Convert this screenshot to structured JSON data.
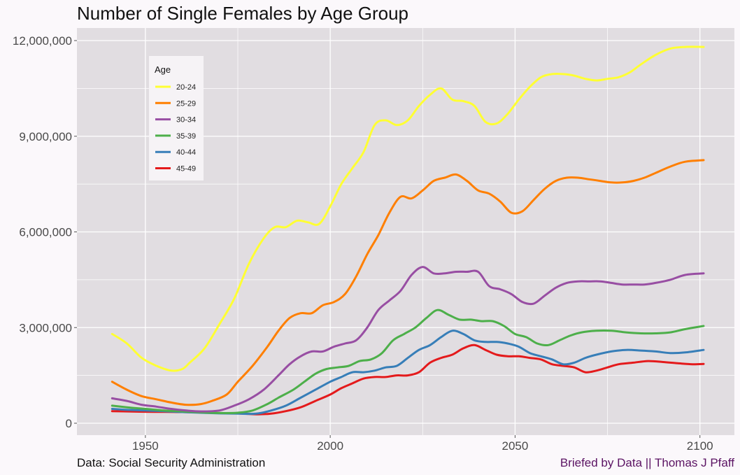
{
  "chart_data": {
    "type": "line",
    "title": "Number of Single Females by Age Group",
    "xlabel": "",
    "ylabel": "",
    "xlim": [
      1940,
      2101
    ],
    "ylim": [
      0,
      12000000
    ],
    "x_ticks": [
      1950,
      2000,
      2050,
      2100
    ],
    "x_tick_labels": [
      "1950",
      "2000",
      "2050",
      "2100"
    ],
    "y_ticks": [
      0,
      3000000,
      6000000,
      9000000,
      12000000
    ],
    "y_tick_labels": [
      "0",
      "3,000,000",
      "6,000,000",
      "9,000,000",
      "12,000,000"
    ],
    "grid": true,
    "legend": {
      "title": "Age",
      "placement": "top-left"
    },
    "colors": {
      "panel": "#e1dde1",
      "grid": "#ffffff",
      "background": "#fbf8fb"
    },
    "series": [
      {
        "name": "20-24",
        "color": "#ffff33",
        "points": [
          [
            1941,
            2800000
          ],
          [
            1945,
            2500000
          ],
          [
            1949,
            2050000
          ],
          [
            1953,
            1800000
          ],
          [
            1957,
            1650000
          ],
          [
            1960,
            1700000
          ],
          [
            1962,
            1900000
          ],
          [
            1966,
            2350000
          ],
          [
            1970,
            3100000
          ],
          [
            1974,
            3900000
          ],
          [
            1978,
            5000000
          ],
          [
            1982,
            5800000
          ],
          [
            1985,
            6150000
          ],
          [
            1988,
            6150000
          ],
          [
            1991,
            6350000
          ],
          [
            1994,
            6300000
          ],
          [
            1997,
            6250000
          ],
          [
            2000,
            6800000
          ],
          [
            2003,
            7500000
          ],
          [
            2006,
            8000000
          ],
          [
            2009,
            8500000
          ],
          [
            2012,
            9350000
          ],
          [
            2015,
            9500000
          ],
          [
            2018,
            9350000
          ],
          [
            2021,
            9500000
          ],
          [
            2024,
            9950000
          ],
          [
            2027,
            10300000
          ],
          [
            2030,
            10500000
          ],
          [
            2033,
            10150000
          ],
          [
            2036,
            10100000
          ],
          [
            2039,
            9950000
          ],
          [
            2042,
            9450000
          ],
          [
            2045,
            9400000
          ],
          [
            2048,
            9700000
          ],
          [
            2051,
            10150000
          ],
          [
            2054,
            10550000
          ],
          [
            2057,
            10850000
          ],
          [
            2060,
            10950000
          ],
          [
            2063,
            10950000
          ],
          [
            2066,
            10900000
          ],
          [
            2069,
            10800000
          ],
          [
            2072,
            10750000
          ],
          [
            2075,
            10800000
          ],
          [
            2078,
            10850000
          ],
          [
            2081,
            11000000
          ],
          [
            2084,
            11250000
          ],
          [
            2088,
            11550000
          ],
          [
            2092,
            11750000
          ],
          [
            2096,
            11800000
          ],
          [
            2101,
            11800000
          ]
        ]
      },
      {
        "name": "25-29",
        "color": "#ff7f00",
        "points": [
          [
            1941,
            1300000
          ],
          [
            1945,
            1050000
          ],
          [
            1949,
            850000
          ],
          [
            1953,
            750000
          ],
          [
            1957,
            650000
          ],
          [
            1961,
            580000
          ],
          [
            1965,
            600000
          ],
          [
            1968,
            700000
          ],
          [
            1972,
            900000
          ],
          [
            1975,
            1300000
          ],
          [
            1979,
            1800000
          ],
          [
            1983,
            2400000
          ],
          [
            1986,
            2900000
          ],
          [
            1989,
            3300000
          ],
          [
            1992,
            3450000
          ],
          [
            1995,
            3450000
          ],
          [
            1998,
            3700000
          ],
          [
            2001,
            3800000
          ],
          [
            2004,
            4050000
          ],
          [
            2007,
            4600000
          ],
          [
            2010,
            5300000
          ],
          [
            2013,
            5900000
          ],
          [
            2016,
            6600000
          ],
          [
            2019,
            7100000
          ],
          [
            2022,
            7050000
          ],
          [
            2025,
            7300000
          ],
          [
            2028,
            7600000
          ],
          [
            2031,
            7700000
          ],
          [
            2034,
            7800000
          ],
          [
            2037,
            7600000
          ],
          [
            2040,
            7300000
          ],
          [
            2043,
            7200000
          ],
          [
            2046,
            6950000
          ],
          [
            2049,
            6600000
          ],
          [
            2052,
            6650000
          ],
          [
            2055,
            7000000
          ],
          [
            2058,
            7350000
          ],
          [
            2061,
            7600000
          ],
          [
            2064,
            7700000
          ],
          [
            2067,
            7700000
          ],
          [
            2070,
            7650000
          ],
          [
            2073,
            7600000
          ],
          [
            2076,
            7550000
          ],
          [
            2079,
            7550000
          ],
          [
            2082,
            7600000
          ],
          [
            2085,
            7700000
          ],
          [
            2088,
            7850000
          ],
          [
            2092,
            8050000
          ],
          [
            2096,
            8200000
          ],
          [
            2101,
            8250000
          ]
        ]
      },
      {
        "name": "30-34",
        "color": "#984ea3",
        "points": [
          [
            1941,
            780000
          ],
          [
            1945,
            700000
          ],
          [
            1949,
            580000
          ],
          [
            1953,
            520000
          ],
          [
            1957,
            450000
          ],
          [
            1961,
            400000
          ],
          [
            1965,
            370000
          ],
          [
            1970,
            400000
          ],
          [
            1974,
            550000
          ],
          [
            1978,
            750000
          ],
          [
            1982,
            1050000
          ],
          [
            1986,
            1500000
          ],
          [
            1989,
            1850000
          ],
          [
            1992,
            2100000
          ],
          [
            1995,
            2250000
          ],
          [
            1998,
            2250000
          ],
          [
            2001,
            2400000
          ],
          [
            2004,
            2500000
          ],
          [
            2007,
            2600000
          ],
          [
            2010,
            3000000
          ],
          [
            2013,
            3550000
          ],
          [
            2016,
            3850000
          ],
          [
            2019,
            4150000
          ],
          [
            2022,
            4650000
          ],
          [
            2025,
            4900000
          ],
          [
            2028,
            4700000
          ],
          [
            2031,
            4700000
          ],
          [
            2034,
            4750000
          ],
          [
            2037,
            4750000
          ],
          [
            2040,
            4750000
          ],
          [
            2043,
            4300000
          ],
          [
            2046,
            4200000
          ],
          [
            2049,
            4050000
          ],
          [
            2052,
            3800000
          ],
          [
            2055,
            3750000
          ],
          [
            2058,
            4000000
          ],
          [
            2061,
            4250000
          ],
          [
            2064,
            4400000
          ],
          [
            2067,
            4450000
          ],
          [
            2070,
            4450000
          ],
          [
            2073,
            4450000
          ],
          [
            2076,
            4400000
          ],
          [
            2079,
            4350000
          ],
          [
            2082,
            4350000
          ],
          [
            2085,
            4350000
          ],
          [
            2088,
            4400000
          ],
          [
            2092,
            4500000
          ],
          [
            2096,
            4650000
          ],
          [
            2101,
            4700000
          ]
        ]
      },
      {
        "name": "35-39",
        "color": "#4daf4a",
        "points": [
          [
            1941,
            550000
          ],
          [
            1945,
            500000
          ],
          [
            1950,
            450000
          ],
          [
            1955,
            400000
          ],
          [
            1960,
            370000
          ],
          [
            1965,
            340000
          ],
          [
            1970,
            320000
          ],
          [
            1975,
            330000
          ],
          [
            1979,
            400000
          ],
          [
            1983,
            600000
          ],
          [
            1986,
            800000
          ],
          [
            1990,
            1050000
          ],
          [
            1993,
            1300000
          ],
          [
            1996,
            1550000
          ],
          [
            1999,
            1700000
          ],
          [
            2002,
            1750000
          ],
          [
            2005,
            1800000
          ],
          [
            2008,
            1950000
          ],
          [
            2011,
            2000000
          ],
          [
            2014,
            2200000
          ],
          [
            2017,
            2600000
          ],
          [
            2020,
            2800000
          ],
          [
            2023,
            3000000
          ],
          [
            2026,
            3300000
          ],
          [
            2029,
            3550000
          ],
          [
            2032,
            3400000
          ],
          [
            2035,
            3250000
          ],
          [
            2038,
            3250000
          ],
          [
            2041,
            3200000
          ],
          [
            2044,
            3200000
          ],
          [
            2047,
            3050000
          ],
          [
            2050,
            2800000
          ],
          [
            2053,
            2700000
          ],
          [
            2056,
            2500000
          ],
          [
            2059,
            2450000
          ],
          [
            2062,
            2600000
          ],
          [
            2065,
            2750000
          ],
          [
            2068,
            2850000
          ],
          [
            2072,
            2900000
          ],
          [
            2076,
            2900000
          ],
          [
            2080,
            2850000
          ],
          [
            2084,
            2820000
          ],
          [
            2088,
            2820000
          ],
          [
            2092,
            2850000
          ],
          [
            2096,
            2950000
          ],
          [
            2101,
            3050000
          ]
        ]
      },
      {
        "name": "40-44",
        "color": "#377eb8",
        "points": [
          [
            1941,
            450000
          ],
          [
            1945,
            420000
          ],
          [
            1950,
            400000
          ],
          [
            1955,
            380000
          ],
          [
            1960,
            350000
          ],
          [
            1965,
            330000
          ],
          [
            1970,
            310000
          ],
          [
            1975,
            300000
          ],
          [
            1980,
            300000
          ],
          [
            1984,
            400000
          ],
          [
            1988,
            550000
          ],
          [
            1992,
            800000
          ],
          [
            1996,
            1050000
          ],
          [
            2000,
            1300000
          ],
          [
            2003,
            1450000
          ],
          [
            2006,
            1600000
          ],
          [
            2009,
            1600000
          ],
          [
            2012,
            1650000
          ],
          [
            2015,
            1750000
          ],
          [
            2018,
            1800000
          ],
          [
            2021,
            2050000
          ],
          [
            2024,
            2300000
          ],
          [
            2027,
            2450000
          ],
          [
            2030,
            2700000
          ],
          [
            2033,
            2900000
          ],
          [
            2036,
            2800000
          ],
          [
            2039,
            2600000
          ],
          [
            2042,
            2550000
          ],
          [
            2045,
            2550000
          ],
          [
            2048,
            2500000
          ],
          [
            2051,
            2400000
          ],
          [
            2054,
            2200000
          ],
          [
            2057,
            2100000
          ],
          [
            2060,
            2000000
          ],
          [
            2063,
            1850000
          ],
          [
            2066,
            1900000
          ],
          [
            2069,
            2050000
          ],
          [
            2072,
            2150000
          ],
          [
            2076,
            2250000
          ],
          [
            2080,
            2300000
          ],
          [
            2084,
            2280000
          ],
          [
            2088,
            2250000
          ],
          [
            2092,
            2200000
          ],
          [
            2096,
            2220000
          ],
          [
            2101,
            2300000
          ]
        ]
      },
      {
        "name": "45-49",
        "color": "#e41a1c",
        "points": [
          [
            1941,
            380000
          ],
          [
            1945,
            370000
          ],
          [
            1950,
            360000
          ],
          [
            1955,
            355000
          ],
          [
            1960,
            350000
          ],
          [
            1965,
            340000
          ],
          [
            1970,
            320000
          ],
          [
            1975,
            310000
          ],
          [
            1980,
            280000
          ],
          [
            1984,
            300000
          ],
          [
            1988,
            380000
          ],
          [
            1992,
            500000
          ],
          [
            1996,
            700000
          ],
          [
            2000,
            900000
          ],
          [
            2003,
            1100000
          ],
          [
            2006,
            1250000
          ],
          [
            2009,
            1400000
          ],
          [
            2012,
            1450000
          ],
          [
            2015,
            1450000
          ],
          [
            2018,
            1500000
          ],
          [
            2021,
            1500000
          ],
          [
            2024,
            1600000
          ],
          [
            2027,
            1900000
          ],
          [
            2030,
            2050000
          ],
          [
            2033,
            2150000
          ],
          [
            2036,
            2350000
          ],
          [
            2039,
            2450000
          ],
          [
            2042,
            2300000
          ],
          [
            2045,
            2150000
          ],
          [
            2048,
            2100000
          ],
          [
            2051,
            2100000
          ],
          [
            2054,
            2050000
          ],
          [
            2057,
            2000000
          ],
          [
            2060,
            1850000
          ],
          [
            2063,
            1800000
          ],
          [
            2066,
            1750000
          ],
          [
            2069,
            1600000
          ],
          [
            2072,
            1650000
          ],
          [
            2075,
            1750000
          ],
          [
            2078,
            1850000
          ],
          [
            2082,
            1900000
          ],
          [
            2086,
            1950000
          ],
          [
            2090,
            1920000
          ],
          [
            2094,
            1880000
          ],
          [
            2098,
            1850000
          ],
          [
            2101,
            1860000
          ]
        ]
      }
    ]
  },
  "captions": {
    "source": "Data: Social Security Administration",
    "credit": "Briefed by Data || Thomas J Pfaff"
  }
}
